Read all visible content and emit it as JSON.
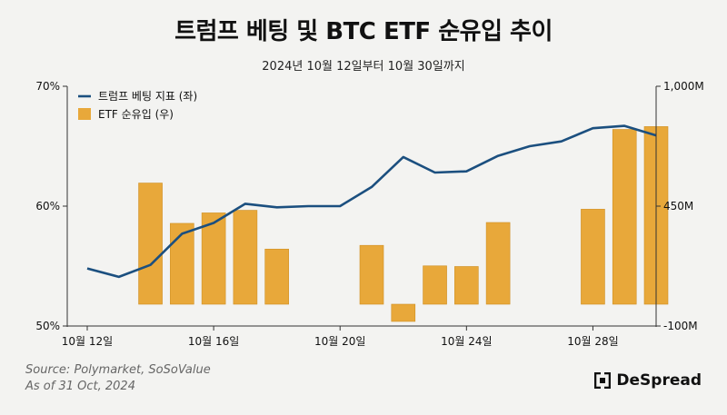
{
  "title": "트럼프 베팅 및 BTC ETF 순유입 추이",
  "subtitle": "2024년 10월 12일부터 10월 30일까지",
  "footer": {
    "source": "Source: Polymarket, SoSoValue",
    "asof": "As of 31 Oct, 2024"
  },
  "brand": {
    "name": "DeSpread"
  },
  "colors": {
    "line": "#1b4f7f",
    "bar": "#e8a83a",
    "bar_stroke": "#cf9024",
    "axis": "#333333"
  },
  "chart_data": {
    "type": "bar+line",
    "x": [
      "10-12",
      "10-13",
      "10-14",
      "10-15",
      "10-16",
      "10-17",
      "10-18",
      "10-19",
      "10-20",
      "10-21",
      "10-22",
      "10-23",
      "10-24",
      "10-25",
      "10-26",
      "10-27",
      "10-28",
      "10-29",
      "10-30"
    ],
    "x_tick_labels": [
      {
        "index": 0,
        "label": "10월 12일"
      },
      {
        "index": 4,
        "label": "10월 16일"
      },
      {
        "index": 8,
        "label": "10월 20일"
      },
      {
        "index": 12,
        "label": "10월 24일"
      },
      {
        "index": 16,
        "label": "10월 28일"
      }
    ],
    "series": [
      {
        "name": "트럼프 베팅 지표 (좌)",
        "kind": "line",
        "axis": "left",
        "values": [
          54.8,
          54.1,
          55.1,
          57.7,
          58.6,
          60.2,
          59.9,
          60.0,
          60.0,
          61.6,
          64.1,
          62.8,
          62.9,
          64.2,
          65.0,
          65.4,
          66.5,
          66.7,
          65.9
        ]
      },
      {
        "name": "ETF 순유입 (우)",
        "kind": "bar",
        "axis": "right",
        "values": [
          null,
          null,
          556,
          371,
          419,
          431,
          253,
          null,
          null,
          270,
          -79,
          176,
          173,
          375,
          null,
          null,
          436,
          802,
          815
        ]
      }
    ],
    "y_left": {
      "min": 50,
      "max": 70,
      "ticks": [
        "50%",
        "60%",
        "70%"
      ],
      "tick_values": [
        50,
        60,
        70
      ]
    },
    "y_right": {
      "min": -100,
      "max": 1000,
      "ticks": [
        "-100M",
        "450M",
        "1,000M"
      ],
      "tick_values": [
        -100,
        450,
        1000
      ]
    },
    "legend_position": "top-left",
    "grid": false
  }
}
